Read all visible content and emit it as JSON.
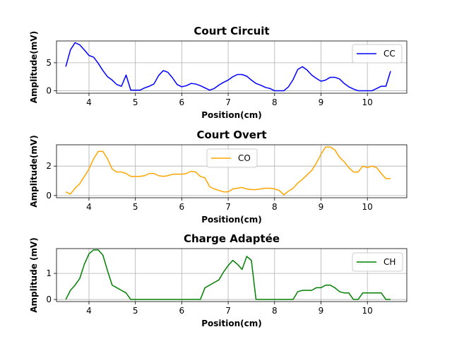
{
  "chart_data": [
    {
      "type": "line",
      "title": "Court Circuit",
      "xlabel": "Position(cm)",
      "ylabel": "Amplitude(mV)",
      "xlim": [
        3.3,
        10.85
      ],
      "ylim": [
        -0.45,
        8.9
      ],
      "xticks": [
        4,
        5,
        6,
        7,
        8,
        9,
        10
      ],
      "yticks": [
        0,
        5
      ],
      "grid": true,
      "legend": "right",
      "series": [
        {
          "name": "CC",
          "color": "#0000ff",
          "x": [
            3.5,
            3.6,
            3.7,
            3.8,
            3.9,
            4.0,
            4.1,
            4.2,
            4.3,
            4.4,
            4.5,
            4.6,
            4.7,
            4.8,
            4.9,
            5.0,
            5.1,
            5.2,
            5.3,
            5.4,
            5.5,
            5.6,
            5.7,
            5.8,
            5.9,
            6.0,
            6.1,
            6.2,
            6.3,
            6.4,
            6.5,
            6.6,
            6.7,
            6.8,
            6.9,
            7.0,
            7.1,
            7.2,
            7.3,
            7.4,
            7.5,
            7.6,
            7.7,
            7.8,
            7.9,
            8.0,
            8.1,
            8.2,
            8.3,
            8.4,
            8.5,
            8.6,
            8.7,
            8.8,
            8.9,
            9.0,
            9.1,
            9.2,
            9.3,
            9.4,
            9.5,
            9.6,
            9.7,
            9.8,
            9.9,
            10.0,
            10.1,
            10.2,
            10.3,
            10.4,
            10.5
          ],
          "y": [
            4.3,
            7.3,
            8.6,
            8.2,
            7.3,
            6.3,
            6.0,
            4.9,
            3.6,
            2.5,
            1.9,
            1.1,
            0.8,
            2.8,
            0.1,
            0.1,
            0.1,
            0.5,
            0.8,
            1.2,
            2.7,
            3.6,
            3.3,
            2.3,
            1.1,
            0.7,
            0.9,
            1.3,
            1.2,
            0.9,
            0.5,
            0.1,
            0.4,
            1.0,
            1.5,
            1.9,
            2.5,
            2.9,
            2.9,
            2.6,
            1.9,
            1.3,
            1.0,
            0.6,
            0.4,
            0.0,
            0.0,
            0.0,
            0.7,
            2.0,
            3.8,
            4.3,
            3.7,
            2.8,
            2.2,
            1.7,
            1.9,
            2.4,
            2.4,
            2.1,
            1.3,
            0.7,
            0.3,
            0.0,
            0.0,
            0.0,
            0.0,
            0.4,
            0.8,
            0.8,
            3.5
          ]
        }
      ]
    },
    {
      "type": "line",
      "title": "Court Overt",
      "xlabel": "Position(cm)",
      "ylabel": "Amplitude(mV)",
      "xlim": [
        3.3,
        10.85
      ],
      "ylim": [
        -0.15,
        3.45
      ],
      "xticks": [
        4,
        5,
        6,
        7,
        8,
        9,
        10
      ],
      "yticks": [
        0,
        2
      ],
      "grid": true,
      "legend": "upper-center",
      "series": [
        {
          "name": "CO",
          "color": "#ffa500",
          "x": [
            3.5,
            3.6,
            3.7,
            3.8,
            3.9,
            4.0,
            4.1,
            4.2,
            4.3,
            4.4,
            4.5,
            4.6,
            4.7,
            4.8,
            4.9,
            5.0,
            5.1,
            5.2,
            5.3,
            5.4,
            5.5,
            5.6,
            5.7,
            5.8,
            5.9,
            6.0,
            6.1,
            6.2,
            6.3,
            6.4,
            6.5,
            6.6,
            6.7,
            6.8,
            6.9,
            7.0,
            7.1,
            7.2,
            7.3,
            7.4,
            7.5,
            7.6,
            7.7,
            7.8,
            7.9,
            8.0,
            8.1,
            8.2,
            8.3,
            8.4,
            8.5,
            8.6,
            8.7,
            8.8,
            8.9,
            9.0,
            9.1,
            9.2,
            9.3,
            9.4,
            9.5,
            9.6,
            9.7,
            9.8,
            9.9,
            10.0,
            10.1,
            10.2,
            10.3,
            10.4,
            10.5
          ],
          "y": [
            0.25,
            0.1,
            0.5,
            0.8,
            1.3,
            1.8,
            2.5,
            3.0,
            3.0,
            2.5,
            1.8,
            1.6,
            1.6,
            1.5,
            1.3,
            1.3,
            1.3,
            1.35,
            1.5,
            1.5,
            1.35,
            1.3,
            1.35,
            1.45,
            1.45,
            1.45,
            1.5,
            1.65,
            1.6,
            1.3,
            1.2,
            0.6,
            0.45,
            0.35,
            0.25,
            0.25,
            0.45,
            0.5,
            0.55,
            0.45,
            0.4,
            0.4,
            0.45,
            0.5,
            0.5,
            0.45,
            0.35,
            0.05,
            0.3,
            0.5,
            0.85,
            1.1,
            1.4,
            1.7,
            2.2,
            2.8,
            3.3,
            3.3,
            3.1,
            2.6,
            2.3,
            1.9,
            1.6,
            1.6,
            2.0,
            1.9,
            2.0,
            1.9,
            1.5,
            1.15,
            1.15
          ]
        }
      ]
    },
    {
      "type": "line",
      "title": "Charge Adaptée",
      "xlabel": "Position(cm)",
      "ylabel": "Amplitude (mV)",
      "xlim": [
        3.3,
        10.85
      ],
      "ylim": [
        -0.08,
        1.95
      ],
      "xticks": [
        4,
        5,
        6,
        7,
        8,
        9,
        10
      ],
      "yticks": [
        0,
        1
      ],
      "grid": true,
      "legend": "upper-right",
      "series": [
        {
          "name": "CH",
          "color": "#008000",
          "x": [
            3.5,
            3.6,
            3.7,
            3.8,
            3.9,
            4.0,
            4.1,
            4.2,
            4.3,
            4.4,
            4.5,
            4.6,
            4.7,
            4.8,
            4.9,
            5.0,
            5.5,
            6.0,
            6.4,
            6.5,
            6.6,
            6.7,
            6.8,
            6.9,
            7.0,
            7.1,
            7.2,
            7.3,
            7.4,
            7.5,
            7.6,
            7.7,
            8.0,
            8.4,
            8.5,
            8.6,
            8.7,
            8.8,
            8.9,
            9.0,
            9.1,
            9.2,
            9.3,
            9.4,
            9.5,
            9.6,
            9.7,
            9.8,
            9.9,
            10.0,
            10.1,
            10.2,
            10.3,
            10.4,
            10.5
          ],
          "y": [
            0.0,
            0.35,
            0.55,
            0.8,
            1.35,
            1.75,
            1.9,
            1.9,
            1.7,
            1.1,
            0.55,
            0.45,
            0.35,
            0.25,
            0.0,
            0.0,
            0.0,
            0.0,
            0.0,
            0.45,
            0.55,
            0.65,
            0.75,
            1.05,
            1.3,
            1.5,
            1.35,
            1.15,
            1.65,
            1.5,
            0.0,
            0.0,
            0.0,
            0.0,
            0.3,
            0.35,
            0.35,
            0.35,
            0.45,
            0.45,
            0.55,
            0.55,
            0.45,
            0.3,
            0.25,
            0.25,
            0.0,
            0.0,
            0.25,
            0.25,
            0.25,
            0.25,
            0.25,
            0.0,
            0.0
          ]
        }
      ]
    }
  ]
}
